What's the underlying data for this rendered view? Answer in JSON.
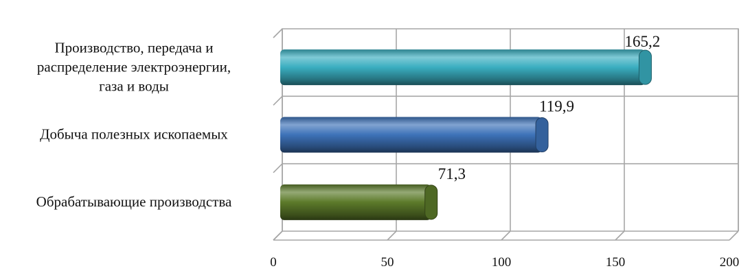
{
  "chart_data": {
    "type": "bar",
    "orientation": "horizontal",
    "style": "3d-cylinder",
    "categories": [
      "Производство, передача и распределение электроэнергии, газа и воды",
      "Добыча полезных ископаемых",
      "Обрабатывающие производства"
    ],
    "category_lines": [
      [
        "Производство, передача и",
        "распределение электроэнергии,",
        "газа и воды"
      ],
      [
        "Добыча полезных ископаемых"
      ],
      [
        "Обрабатывающие производства"
      ]
    ],
    "values": [
      165.2,
      119.9,
      71.3
    ],
    "data_labels": [
      "165,2",
      "119,9",
      "71,3"
    ],
    "bar_colors": [
      "#3aaec0",
      "#3d72b8",
      "#5c7a2a"
    ],
    "xlim": [
      0,
      200
    ],
    "x_ticks": [
      0,
      50,
      100,
      150,
      200
    ],
    "x_tick_labels": [
      "0",
      "50",
      "100",
      "150",
      "200"
    ],
    "grid": true,
    "legend": "none",
    "title": "",
    "xlabel": "",
    "ylabel": ""
  }
}
